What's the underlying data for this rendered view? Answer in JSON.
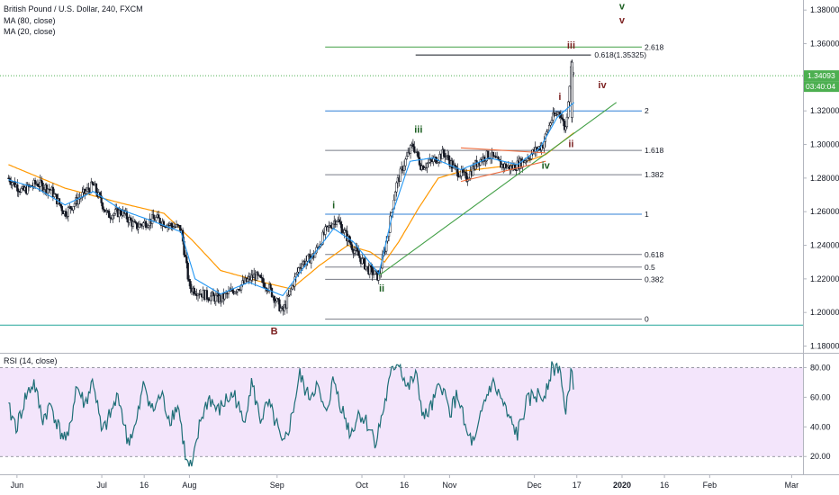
{
  "header": {
    "symbol": "British Pound / U.S. Dollar, 240, FXCM",
    "ma_slow": "MA (80, close)",
    "ma_fast": "MA (20, close)",
    "rsi": "RSI (14, close)"
  },
  "colors": {
    "candle": "#131722",
    "ma_slow": "#ff9800",
    "ma_fast": "#2196f3",
    "rsi_line": "#1e6e77",
    "rsi_band": "#f3e5fb",
    "fib_blue": "#2f7fd6",
    "fib_gray": "#787b86",
    "fib_green": "#43a047",
    "trend_green": "#43a047",
    "wedge": "#ef6c3d",
    "price_badge": "#4caf50",
    "wave_green": "#1b5e20",
    "wave_dark": "#7b1f1f",
    "baseline": "#26a69a"
  },
  "price_badge": {
    "price": "1.34093",
    "countdown": "03:40:04",
    "value": 1.34093
  },
  "chart_data": [
    {
      "type": "candlestick",
      "title": "British Pound / U.S. Dollar, 240, FXCM",
      "x_ticks": [
        {
          "label": "Jun",
          "t": 3
        },
        {
          "label": "Jul",
          "t": 33
        },
        {
          "label": "16",
          "t": 48
        },
        {
          "label": "Aug",
          "t": 64
        },
        {
          "label": "Sep",
          "t": 95
        },
        {
          "label": "Oct",
          "t": 125
        },
        {
          "label": "16",
          "t": 140
        },
        {
          "label": "Nov",
          "t": 156
        },
        {
          "label": "Dec",
          "t": 186
        },
        {
          "label": "17",
          "t": 201
        },
        {
          "label": "2020",
          "t": 217
        },
        {
          "label": "16",
          "t": 232
        },
        {
          "label": "Feb",
          "t": 248
        },
        {
          "label": "Mar",
          "t": 277
        }
      ],
      "y_ticks": [
        "1.38000",
        "1.36000",
        "1.34000",
        "1.32000",
        "1.30000",
        "1.28000",
        "1.26000",
        "1.24000",
        "1.22000",
        "1.20000",
        "1.18000"
      ],
      "ylim": [
        1.176,
        1.386
      ],
      "price_path": [
        {
          "t": 0,
          "v": 1.28
        },
        {
          "t": 5,
          "v": 1.272
        },
        {
          "t": 10,
          "v": 1.277
        },
        {
          "t": 15,
          "v": 1.273
        },
        {
          "t": 20,
          "v": 1.259
        },
        {
          "t": 25,
          "v": 1.268
        },
        {
          "t": 30,
          "v": 1.276
        },
        {
          "t": 35,
          "v": 1.258
        },
        {
          "t": 40,
          "v": 1.26
        },
        {
          "t": 45,
          "v": 1.251
        },
        {
          "t": 52,
          "v": 1.256
        },
        {
          "t": 57,
          "v": 1.252
        },
        {
          "t": 61,
          "v": 1.25
        },
        {
          "t": 64,
          "v": 1.215
        },
        {
          "t": 70,
          "v": 1.21
        },
        {
          "t": 75,
          "v": 1.208
        },
        {
          "t": 82,
          "v": 1.216
        },
        {
          "t": 87,
          "v": 1.222
        },
        {
          "t": 92,
          "v": 1.215
        },
        {
          "t": 97,
          "v": 1.2
        },
        {
          "t": 103,
          "v": 1.228
        },
        {
          "t": 108,
          "v": 1.234
        },
        {
          "t": 112,
          "v": 1.248
        },
        {
          "t": 116,
          "v": 1.256
        },
        {
          "t": 119,
          "v": 1.247
        },
        {
          "t": 122,
          "v": 1.238
        },
        {
          "t": 127,
          "v": 1.226
        },
        {
          "t": 131,
          "v": 1.221
        },
        {
          "t": 134,
          "v": 1.245
        },
        {
          "t": 137,
          "v": 1.275
        },
        {
          "t": 140,
          "v": 1.289
        },
        {
          "t": 143,
          "v": 1.3
        },
        {
          "t": 146,
          "v": 1.287
        },
        {
          "t": 150,
          "v": 1.29
        },
        {
          "t": 154,
          "v": 1.295
        },
        {
          "t": 158,
          "v": 1.285
        },
        {
          "t": 162,
          "v": 1.28
        },
        {
          "t": 166,
          "v": 1.29
        },
        {
          "t": 170,
          "v": 1.294
        },
        {
          "t": 174,
          "v": 1.288
        },
        {
          "t": 178,
          "v": 1.286
        },
        {
          "t": 182,
          "v": 1.29
        },
        {
          "t": 186,
          "v": 1.296
        },
        {
          "t": 189,
          "v": 1.3
        },
        {
          "t": 192,
          "v": 1.315
        },
        {
          "t": 195,
          "v": 1.32
        },
        {
          "t": 197,
          "v": 1.308
        },
        {
          "t": 199,
          "v": 1.347
        },
        {
          "t": 200,
          "v": 1.341
        }
      ],
      "ma_slow_path": [
        {
          "t": 0,
          "v": 1.288
        },
        {
          "t": 20,
          "v": 1.274
        },
        {
          "t": 40,
          "v": 1.265
        },
        {
          "t": 55,
          "v": 1.259
        },
        {
          "t": 65,
          "v": 1.243
        },
        {
          "t": 75,
          "v": 1.225
        },
        {
          "t": 90,
          "v": 1.218
        },
        {
          "t": 100,
          "v": 1.214
        },
        {
          "t": 110,
          "v": 1.228
        },
        {
          "t": 120,
          "v": 1.24
        },
        {
          "t": 128,
          "v": 1.236
        },
        {
          "t": 133,
          "v": 1.23
        },
        {
          "t": 138,
          "v": 1.242
        },
        {
          "t": 145,
          "v": 1.262
        },
        {
          "t": 152,
          "v": 1.28
        },
        {
          "t": 160,
          "v": 1.284
        },
        {
          "t": 170,
          "v": 1.286
        },
        {
          "t": 180,
          "v": 1.288
        },
        {
          "t": 190,
          "v": 1.294
        },
        {
          "t": 200,
          "v": 1.307
        }
      ],
      "ma_fast_path": [
        {
          "t": 0,
          "v": 1.279
        },
        {
          "t": 10,
          "v": 1.274
        },
        {
          "t": 20,
          "v": 1.264
        },
        {
          "t": 30,
          "v": 1.272
        },
        {
          "t": 40,
          "v": 1.261
        },
        {
          "t": 50,
          "v": 1.255
        },
        {
          "t": 61,
          "v": 1.248
        },
        {
          "t": 66,
          "v": 1.22
        },
        {
          "t": 75,
          "v": 1.211
        },
        {
          "t": 85,
          "v": 1.218
        },
        {
          "t": 97,
          "v": 1.21
        },
        {
          "t": 105,
          "v": 1.228
        },
        {
          "t": 115,
          "v": 1.25
        },
        {
          "t": 122,
          "v": 1.242
        },
        {
          "t": 131,
          "v": 1.223
        },
        {
          "t": 136,
          "v": 1.26
        },
        {
          "t": 142,
          "v": 1.29
        },
        {
          "t": 150,
          "v": 1.292
        },
        {
          "t": 160,
          "v": 1.285
        },
        {
          "t": 170,
          "v": 1.292
        },
        {
          "t": 180,
          "v": 1.288
        },
        {
          "t": 188,
          "v": 1.298
        },
        {
          "t": 194,
          "v": 1.316
        },
        {
          "t": 200,
          "v": 1.325
        }
      ],
      "fib_levels": [
        {
          "label": "2.618",
          "value": 1.358,
          "color": "#43a047",
          "t_start": 112
        },
        {
          "label": "0.618(1.35325)",
          "value": 1.35325,
          "color": "#131722",
          "t_start": 144,
          "t_end": 206
        },
        {
          "label": "2",
          "value": 1.32,
          "color": "#2f7fd6",
          "t_start": 112
        },
        {
          "label": "1.618",
          "value": 1.2965,
          "color": "#787b86",
          "t_start": 112
        },
        {
          "label": "1.382",
          "value": 1.282,
          "color": "#787b86",
          "t_start": 112
        },
        {
          "label": "1",
          "value": 1.2585,
          "color": "#2f7fd6",
          "t_start": 112
        },
        {
          "label": "0.618",
          "value": 1.2345,
          "color": "#787b86",
          "t_start": 112
        },
        {
          "label": "0.5",
          "value": 1.227,
          "color": "#787b86",
          "t_start": 112
        },
        {
          "label": "0.382",
          "value": 1.2197,
          "color": "#787b86",
          "t_start": 112
        },
        {
          "label": "0",
          "value": 1.196,
          "color": "#787b86",
          "t_start": 112
        }
      ],
      "trend_lines": [
        {
          "from": {
            "t": 131,
            "v": 1.222
          },
          "to": {
            "t": 215,
            "v": 1.325
          },
          "color": "#43a047"
        },
        {
          "from": {
            "t": 160,
            "v": 1.298
          },
          "to": {
            "t": 190,
            "v": 1.295
          },
          "color": "#ef6c3d"
        },
        {
          "from": {
            "t": 160,
            "v": 1.278
          },
          "to": {
            "t": 190,
            "v": 1.29
          },
          "color": "#ef6c3d"
        }
      ],
      "wave_labels": [
        {
          "text": "v",
          "t": 217,
          "v": 1.3805,
          "color": "#1b5e20"
        },
        {
          "text": "v",
          "t": 217,
          "v": 1.372,
          "color": "#7b1f1f"
        },
        {
          "text": "iii",
          "t": 199,
          "v": 1.357,
          "color": "#7b1f1f"
        },
        {
          "text": "iv",
          "t": 210,
          "v": 1.3335,
          "color": "#7b1f1f"
        },
        {
          "text": "i",
          "t": 195,
          "v": 1.3265,
          "color": "#7b1f1f"
        },
        {
          "text": "ii",
          "t": 199,
          "v": 1.2985,
          "color": "#7b1f1f"
        },
        {
          "text": "iii",
          "t": 145,
          "v": 1.307,
          "color": "#1b5e20"
        },
        {
          "text": "iv",
          "t": 190,
          "v": 1.2855,
          "color": "#1b5e20"
        },
        {
          "text": "i",
          "t": 115,
          "v": 1.262,
          "color": "#1b5e20"
        },
        {
          "text": "ii",
          "t": 132,
          "v": 1.2125,
          "color": "#1b5e20"
        },
        {
          "text": "B",
          "t": 94,
          "v": 1.187,
          "color": "#7b1f1f"
        }
      ],
      "baseline_value": 1.1925
    },
    {
      "type": "line",
      "title": "RSI (14, close)",
      "y_ticks": [
        "80.00",
        "60.00",
        "40.00",
        "20.00"
      ],
      "ylim": [
        8,
        90
      ],
      "band": [
        20,
        80
      ],
      "rsi_path": [
        {
          "t": 0,
          "v": 52
        },
        {
          "t": 3,
          "v": 40
        },
        {
          "t": 6,
          "v": 60
        },
        {
          "t": 9,
          "v": 70
        },
        {
          "t": 12,
          "v": 45
        },
        {
          "t": 15,
          "v": 55
        },
        {
          "t": 18,
          "v": 38
        },
        {
          "t": 21,
          "v": 30
        },
        {
          "t": 24,
          "v": 68
        },
        {
          "t": 27,
          "v": 55
        },
        {
          "t": 30,
          "v": 72
        },
        {
          "t": 33,
          "v": 35
        },
        {
          "t": 36,
          "v": 48
        },
        {
          "t": 39,
          "v": 62
        },
        {
          "t": 42,
          "v": 30
        },
        {
          "t": 45,
          "v": 40
        },
        {
          "t": 48,
          "v": 70
        },
        {
          "t": 51,
          "v": 50
        },
        {
          "t": 54,
          "v": 62
        },
        {
          "t": 57,
          "v": 45
        },
        {
          "t": 60,
          "v": 55
        },
        {
          "t": 63,
          "v": 15
        },
        {
          "t": 65,
          "v": 12
        },
        {
          "t": 68,
          "v": 45
        },
        {
          "t": 71,
          "v": 60
        },
        {
          "t": 74,
          "v": 50
        },
        {
          "t": 77,
          "v": 58
        },
        {
          "t": 80,
          "v": 62
        },
        {
          "t": 83,
          "v": 42
        },
        {
          "t": 86,
          "v": 70
        },
        {
          "t": 89,
          "v": 45
        },
        {
          "t": 92,
          "v": 55
        },
        {
          "t": 95,
          "v": 40
        },
        {
          "t": 97,
          "v": 25
        },
        {
          "t": 100,
          "v": 45
        },
        {
          "t": 103,
          "v": 75
        },
        {
          "t": 106,
          "v": 60
        },
        {
          "t": 109,
          "v": 68
        },
        {
          "t": 112,
          "v": 48
        },
        {
          "t": 115,
          "v": 72
        },
        {
          "t": 118,
          "v": 52
        },
        {
          "t": 121,
          "v": 35
        },
        {
          "t": 124,
          "v": 50
        },
        {
          "t": 127,
          "v": 42
        },
        {
          "t": 130,
          "v": 30
        },
        {
          "t": 133,
          "v": 55
        },
        {
          "t": 136,
          "v": 80
        },
        {
          "t": 138,
          "v": 85
        },
        {
          "t": 141,
          "v": 65
        },
        {
          "t": 144,
          "v": 75
        },
        {
          "t": 147,
          "v": 45
        },
        {
          "t": 150,
          "v": 55
        },
        {
          "t": 153,
          "v": 70
        },
        {
          "t": 156,
          "v": 50
        },
        {
          "t": 159,
          "v": 62
        },
        {
          "t": 162,
          "v": 35
        },
        {
          "t": 165,
          "v": 28
        },
        {
          "t": 168,
          "v": 55
        },
        {
          "t": 171,
          "v": 70
        },
        {
          "t": 174,
          "v": 60
        },
        {
          "t": 177,
          "v": 45
        },
        {
          "t": 180,
          "v": 35
        },
        {
          "t": 183,
          "v": 55
        },
        {
          "t": 186,
          "v": 62
        },
        {
          "t": 189,
          "v": 60
        },
        {
          "t": 192,
          "v": 78
        },
        {
          "t": 195,
          "v": 82
        },
        {
          "t": 197,
          "v": 45
        },
        {
          "t": 199,
          "v": 80
        },
        {
          "t": 200,
          "v": 68
        }
      ]
    }
  ]
}
